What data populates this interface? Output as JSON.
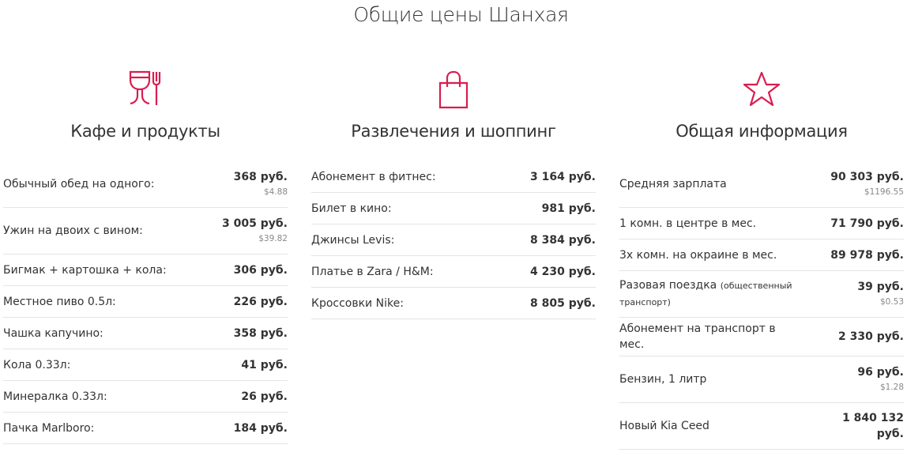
{
  "title": "Общие цены Шанхая",
  "accent": "#d81e4f",
  "columns": [
    {
      "icon": "wine-glass-fork-icon",
      "heading": "Кафе и продукты",
      "items": [
        {
          "label": "Обычный обед на одного:",
          "price": "368 руб.",
          "usd": "$4.88"
        },
        {
          "label": "Ужин на двоих с вином:",
          "price": "3 005 руб.",
          "usd": "$39.82"
        },
        {
          "label": "Бигмак + картошка + кола:",
          "price": "306 руб."
        },
        {
          "label": "Местное пиво 0.5л:",
          "price": "226 руб."
        },
        {
          "label": "Чашка капучино:",
          "price": "358 руб."
        },
        {
          "label": "Кола 0.33л:",
          "price": "41 руб."
        },
        {
          "label": "Минералка 0.33л:",
          "price": "26 руб."
        },
        {
          "label": "Пачка Marlboro:",
          "price": "184 руб."
        }
      ]
    },
    {
      "icon": "shopping-bag-icon",
      "heading": "Развлечения и шоппинг",
      "items": [
        {
          "label": "Абонемент в фитнес:",
          "price": "3 164 руб."
        },
        {
          "label": "Билет в кино:",
          "price": "981 руб."
        },
        {
          "label": "Джинсы Levis:",
          "price": "8 384 руб."
        },
        {
          "label": "Платье в Zara / H&M:",
          "price": "4 230 руб."
        },
        {
          "label": "Кроссовки Nike:",
          "price": "8 805 руб."
        }
      ]
    },
    {
      "icon": "star-icon",
      "heading": "Общая информация",
      "items": [
        {
          "label": "Средняя зарплата",
          "price": "90 303 руб.",
          "usd": "$1196.55"
        },
        {
          "label": "1 комн. в центре в мес.",
          "price": "71 790 руб."
        },
        {
          "label": "3х комн. на окраине в мес.",
          "price": "89 978 руб."
        },
        {
          "label": "Разовая поездка",
          "note": "(общественный транспорт)",
          "price": "39 руб.",
          "usd": "$0.53"
        },
        {
          "label": "Абонемент на транспорт в мес.",
          "price": "2 330 руб."
        },
        {
          "label": "Бензин, 1 литр",
          "price": "96 руб.",
          "usd": "$1.28"
        },
        {
          "label": "Новый Kia Ceed",
          "price": "1 840 132 руб.",
          "tall": true
        }
      ]
    }
  ]
}
